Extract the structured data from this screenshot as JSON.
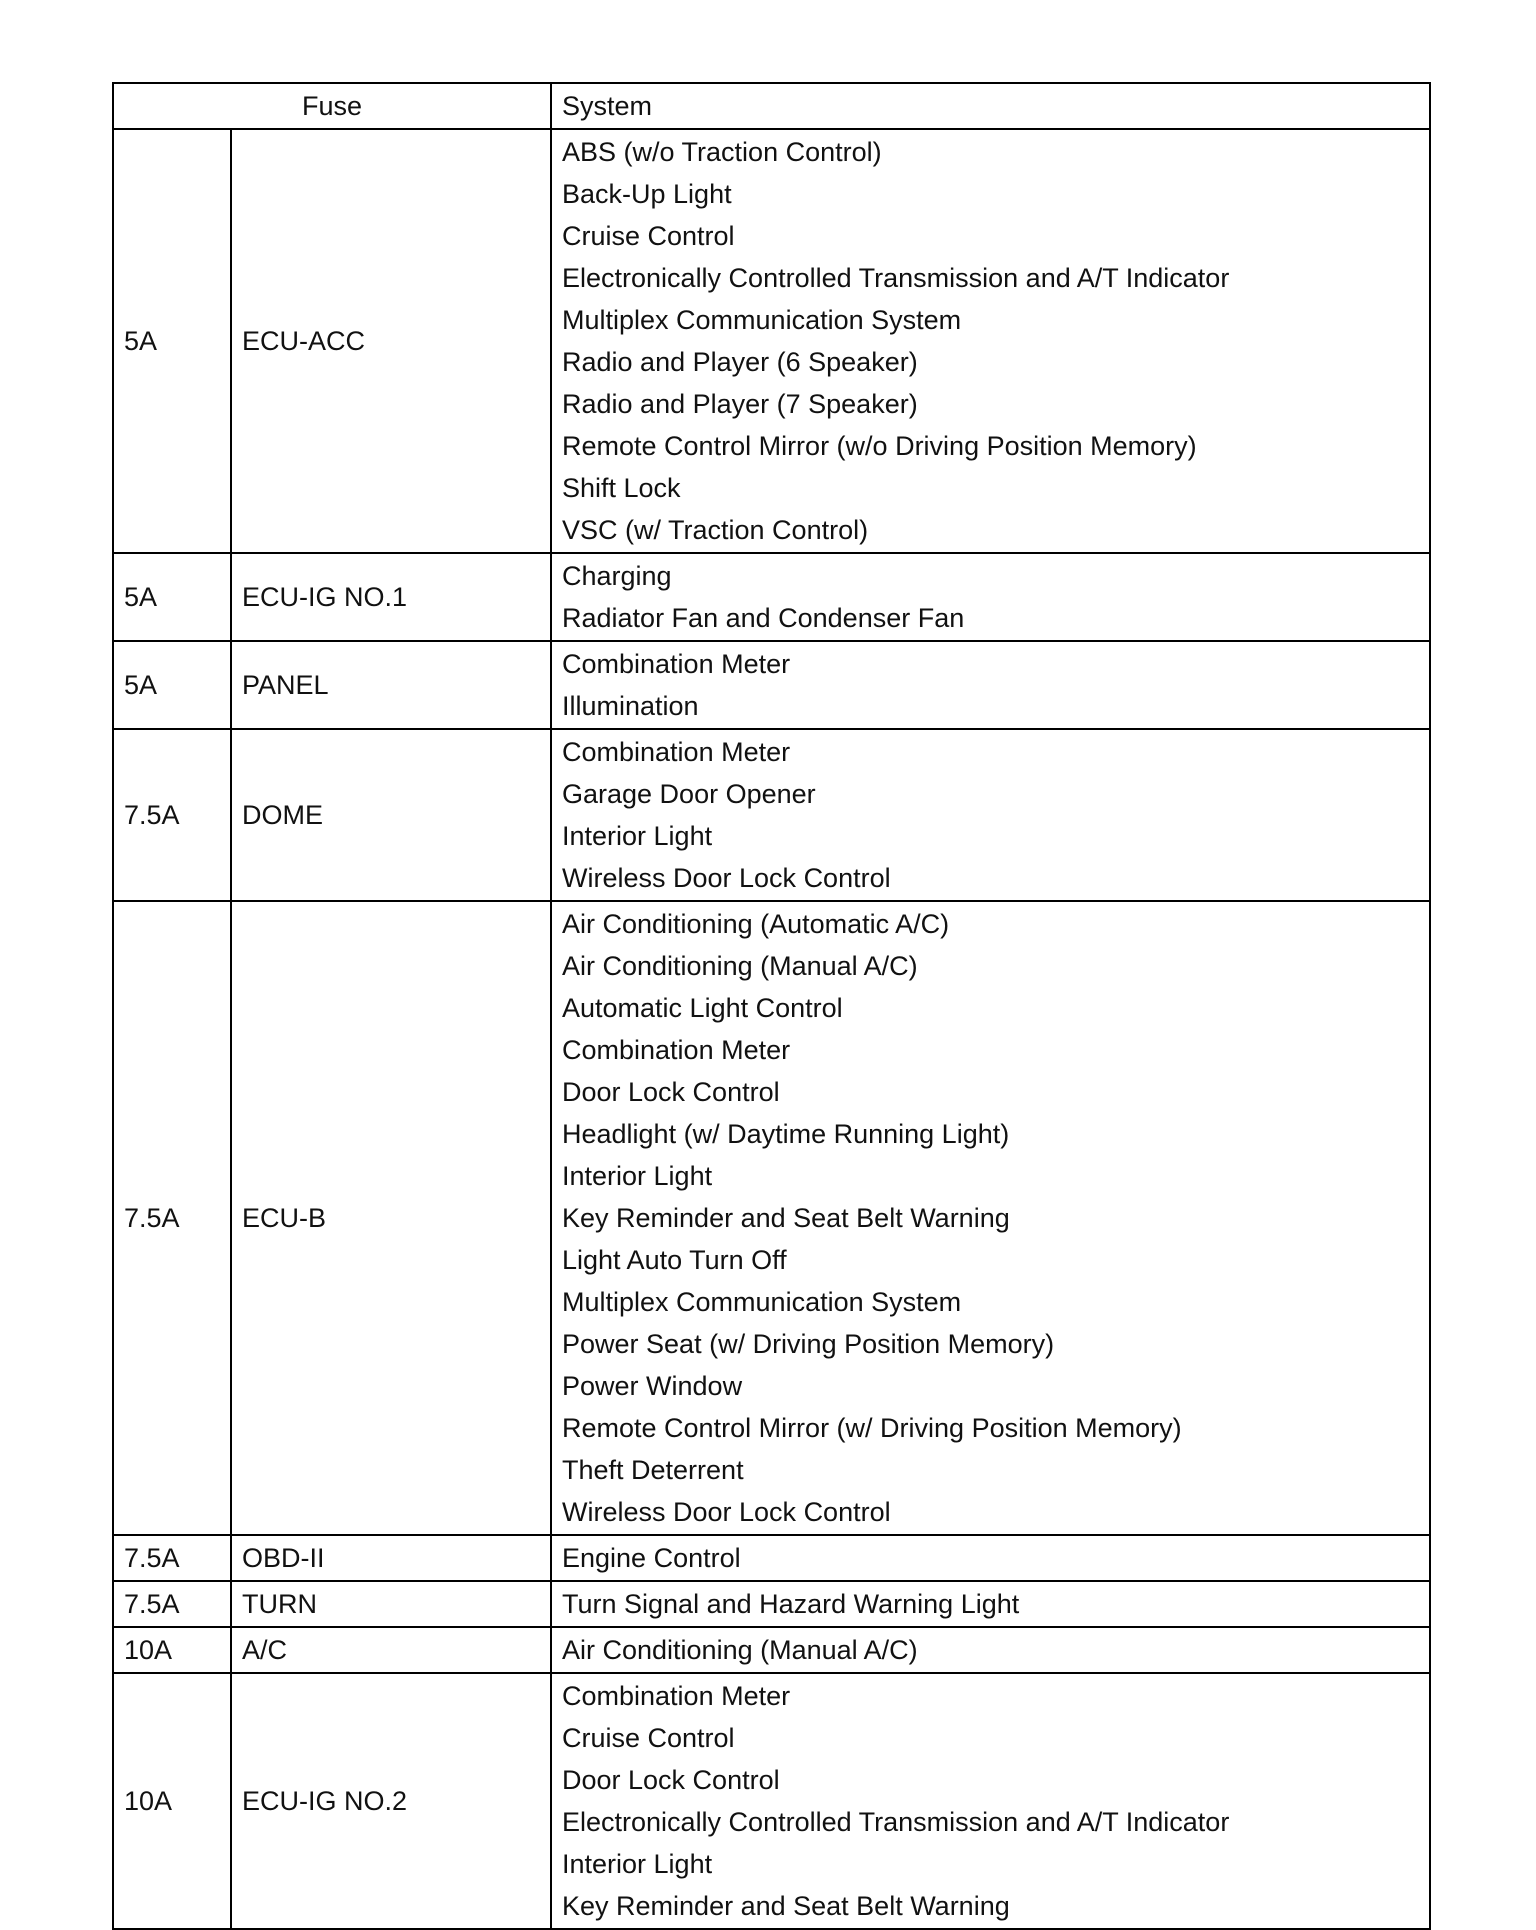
{
  "header": {
    "fuse": "Fuse",
    "system": "System"
  },
  "rows": [
    {
      "amperage": "5A",
      "name": "ECU-ACC",
      "systems": [
        "ABS (w/o Traction Control)",
        "Back-Up Light",
        "Cruise Control",
        "Electronically Controlled Transmission and A/T Indicator",
        "Multiplex Communication System",
        "Radio and Player (6 Speaker)",
        "Radio and Player (7 Speaker)",
        "Remote Control Mirror (w/o Driving Position Memory)",
        "Shift Lock",
        "VSC (w/ Traction Control)"
      ]
    },
    {
      "amperage": "5A",
      "name": "ECU-IG NO.1",
      "systems": [
        "Charging",
        "Radiator Fan and Condenser Fan"
      ]
    },
    {
      "amperage": "5A",
      "name": "PANEL",
      "systems": [
        "Combination Meter",
        "Illumination"
      ]
    },
    {
      "amperage": "7.5A",
      "name": "DOME",
      "systems": [
        "Combination Meter",
        "Garage Door Opener",
        "Interior Light",
        "Wireless Door Lock Control"
      ]
    },
    {
      "amperage": "7.5A",
      "name": "ECU-B",
      "systems": [
        "Air Conditioning (Automatic A/C)",
        "Air Conditioning (Manual A/C)",
        "Automatic Light Control",
        "Combination Meter",
        "Door Lock Control",
        "Headlight (w/ Daytime Running Light)",
        "Interior Light",
        "Key Reminder and Seat Belt Warning",
        "Light Auto Turn Off",
        "Multiplex Communication System",
        "Power Seat (w/ Driving Position Memory)",
        "Power Window",
        "Remote Control Mirror (w/ Driving Position Memory)",
        "Theft Deterrent",
        "Wireless Door Lock Control"
      ]
    },
    {
      "amperage": "7.5A",
      "name": "OBD-II",
      "systems": [
        "Engine Control"
      ]
    },
    {
      "amperage": "7.5A",
      "name": "TURN",
      "systems": [
        "Turn Signal and Hazard Warning Light"
      ]
    },
    {
      "amperage": "10A",
      "name": "A/C",
      "systems": [
        "Air Conditioning (Manual A/C)"
      ]
    },
    {
      "amperage": "10A",
      "name": "ECU-IG NO.2",
      "systems": [
        "Combination Meter",
        "Cruise Control",
        "Door Lock Control",
        "Electronically Controlled Transmission and A/T Indicator",
        "Interior Light",
        "Key Reminder and Seat Belt Warning"
      ]
    }
  ]
}
